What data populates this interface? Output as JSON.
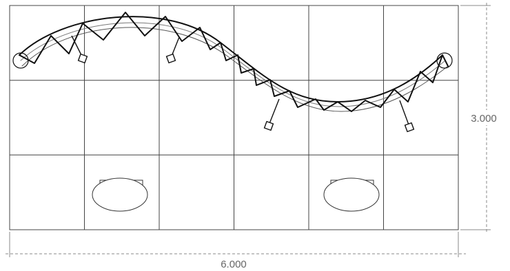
{
  "diagram": {
    "grid": {
      "columns": 6,
      "rows": 3
    },
    "dimensions": {
      "width_label": "6.000",
      "height_label": "3.000"
    },
    "truss": {
      "shape": "s-curve",
      "support_legs": 4
    },
    "tables": {
      "count": 2,
      "shape": "oval"
    },
    "colors": {
      "grid": "#444444",
      "truss": "#111111",
      "truss_light": "#555555",
      "dimension": "#888888"
    }
  }
}
